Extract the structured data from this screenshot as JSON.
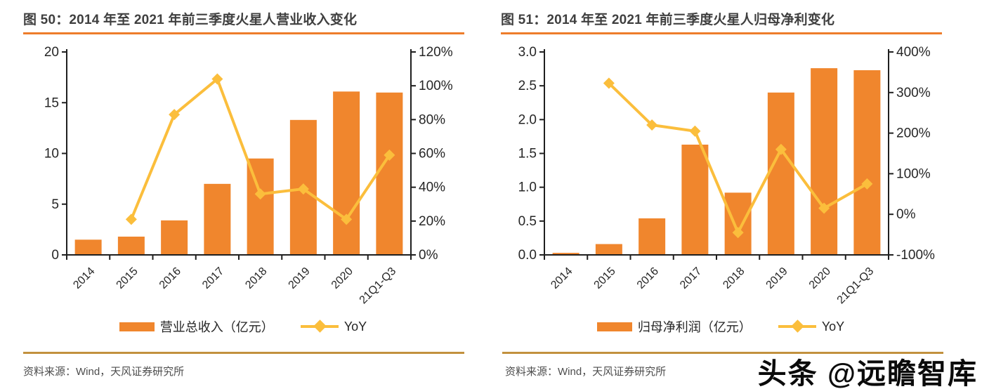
{
  "watermark": {
    "text": "头条 @远瞻智库"
  },
  "source_note": "资料来源：Wind，天风证券研究所",
  "colors": {
    "bar": "#F0862D",
    "line": "#FBBE3C",
    "title_rule": "#EE7D2B",
    "footer_rule": "#C2913E",
    "axis": "#1F1F1F",
    "title_text": "#3F3F3F",
    "source_text": "#4D4D4D"
  },
  "chart_data": [
    {
      "type": "bar+line",
      "title": "图 50：2014 年至 2021 年前三季度火星人营业收入变化",
      "categories": [
        "2014",
        "2015",
        "2016",
        "2017",
        "2018",
        "2019",
        "2020",
        "21Q1-Q3"
      ],
      "series": [
        {
          "name": "营业总收入（亿元）",
          "type": "bar",
          "axis": "left",
          "values": [
            1.5,
            1.8,
            3.4,
            7.0,
            9.5,
            13.3,
            16.1,
            16.0
          ]
        },
        {
          "name": "YoY",
          "type": "line",
          "axis": "right",
          "values": [
            null,
            21,
            83,
            104,
            36,
            39,
            21,
            59
          ]
        }
      ],
      "left_axis": {
        "min": 0,
        "max": 20,
        "ticks": [
          "0",
          "5",
          "10",
          "15",
          "20"
        ]
      },
      "right_axis": {
        "min": 0,
        "max": 120,
        "ticks": [
          "0%",
          "20%",
          "40%",
          "60%",
          "80%",
          "100%",
          "120%"
        ]
      },
      "grid": false,
      "legend_position": "bottom"
    },
    {
      "type": "bar+line",
      "title": "图 51：2014 年至 2021 年前三季度火星人归母净利变化",
      "categories": [
        "2014",
        "2015",
        "2016",
        "2017",
        "2018",
        "2019",
        "2020",
        "21Q1-Q3"
      ],
      "series": [
        {
          "name": "归母净利润（亿元）",
          "type": "bar",
          "axis": "left",
          "values": [
            0.03,
            0.16,
            0.54,
            1.63,
            0.92,
            2.4,
            2.76,
            2.73
          ]
        },
        {
          "name": "YoY",
          "type": "line",
          "axis": "right",
          "values": [
            null,
            323,
            220,
            205,
            -45,
            160,
            15,
            75
          ]
        }
      ],
      "left_axis": {
        "min": 0,
        "max": 3,
        "ticks": [
          "0.0",
          "0.5",
          "1.0",
          "1.5",
          "2.0",
          "2.5",
          "3.0"
        ]
      },
      "right_axis": {
        "min": -100,
        "max": 400,
        "ticks": [
          "-100%",
          "0%",
          "100%",
          "200%",
          "300%",
          "400%"
        ]
      },
      "grid": false,
      "legend_position": "bottom"
    }
  ]
}
